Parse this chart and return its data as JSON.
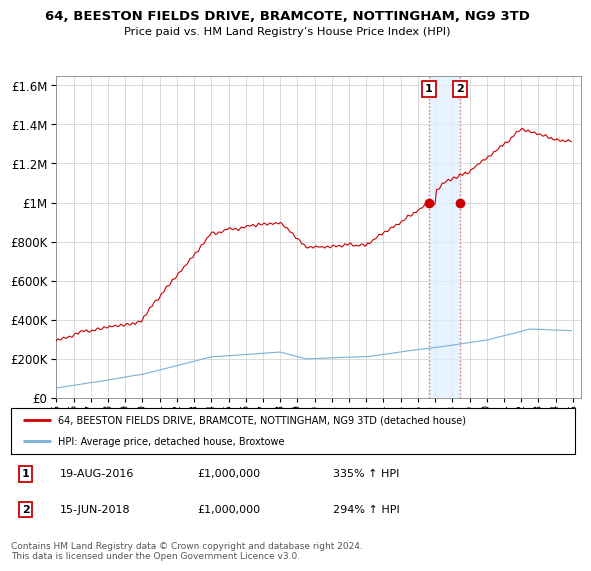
{
  "title": "64, BEESTON FIELDS DRIVE, BRAMCOTE, NOTTINGHAM, NG9 3TD",
  "subtitle": "Price paid vs. HM Land Registry’s House Price Index (HPI)",
  "background_color": "#ffffff",
  "grid_color": "#cccccc",
  "sale1_date": "19-AUG-2016",
  "sale1_price": 1000000,
  "sale1_pct": "335%",
  "sale2_date": "15-JUN-2018",
  "sale2_price": 1000000,
  "sale2_pct": "294%",
  "legend_label_red": "64, BEESTON FIELDS DRIVE, BRAMCOTE, NOTTINGHAM, NG9 3TD (detached house)",
  "legend_label_blue": "HPI: Average price, detached house, Broxtowe",
  "footer": "Contains HM Land Registry data © Crown copyright and database right 2024.\nThis data is licensed under the Open Government Licence v3.0.",
  "ylim": [
    0,
    1650000
  ],
  "xlim_start": 1995.0,
  "xlim_end": 2025.5,
  "sale1_year": 2016.64,
  "sale2_year": 2018.46,
  "red_color": "#cc0000",
  "blue_color": "#7bafd4",
  "vline_color": "#dd6666",
  "shade_color": "#ddeeff",
  "xtick_years": [
    1995,
    1996,
    1997,
    1998,
    1999,
    2000,
    2001,
    2002,
    2003,
    2004,
    2005,
    2006,
    2007,
    2008,
    2009,
    2010,
    2011,
    2012,
    2013,
    2014,
    2015,
    2016,
    2017,
    2018,
    2019,
    2020,
    2021,
    2022,
    2023,
    2024,
    2025
  ]
}
